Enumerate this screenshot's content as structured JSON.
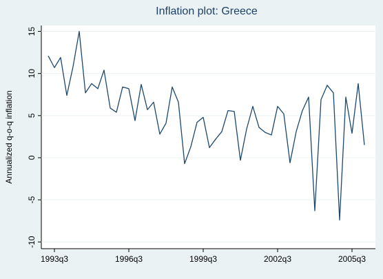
{
  "chart_data": {
    "type": "line",
    "title": "Inflation plot: Greece",
    "y_label": "Annualized q-o-q inflation",
    "categories": [
      null,
      "1993q3",
      null,
      null,
      null,
      null,
      null,
      null,
      null,
      null,
      null,
      null,
      null,
      "1996q3",
      null,
      null,
      null,
      null,
      null,
      null,
      null,
      null,
      null,
      null,
      null,
      "1999q3",
      null,
      null,
      null,
      null,
      null,
      null,
      null,
      null,
      null,
      null,
      null,
      "2002q3",
      null,
      null,
      null,
      null,
      null,
      null,
      null,
      null,
      null,
      null,
      null,
      "2005q3",
      null,
      null
    ],
    "values": [
      12.1,
      10.7,
      11.9,
      7.4,
      10.8,
      15.0,
      7.7,
      8.8,
      8.2,
      10.4,
      5.9,
      5.4,
      8.4,
      8.2,
      4.4,
      8.7,
      5.7,
      6.6,
      2.8,
      4.1,
      8.4,
      6.6,
      -0.7,
      1.3,
      4.2,
      4.8,
      1.2,
      2.2,
      3.1,
      5.6,
      5.5,
      -0.3,
      3.4,
      6.1,
      3.6,
      3.0,
      2.7,
      6.1,
      5.2,
      -0.6,
      3.1,
      5.6,
      7.2,
      -6.3,
      6.9,
      8.6,
      7.7,
      -7.4,
      7.2,
      2.9,
      8.8,
      1.5
    ],
    "color": "#1a476f",
    "ylim": [
      -10.8,
      15.7
    ],
    "yticks": [
      -10,
      -5,
      0,
      5,
      10,
      15
    ],
    "grid": true
  }
}
